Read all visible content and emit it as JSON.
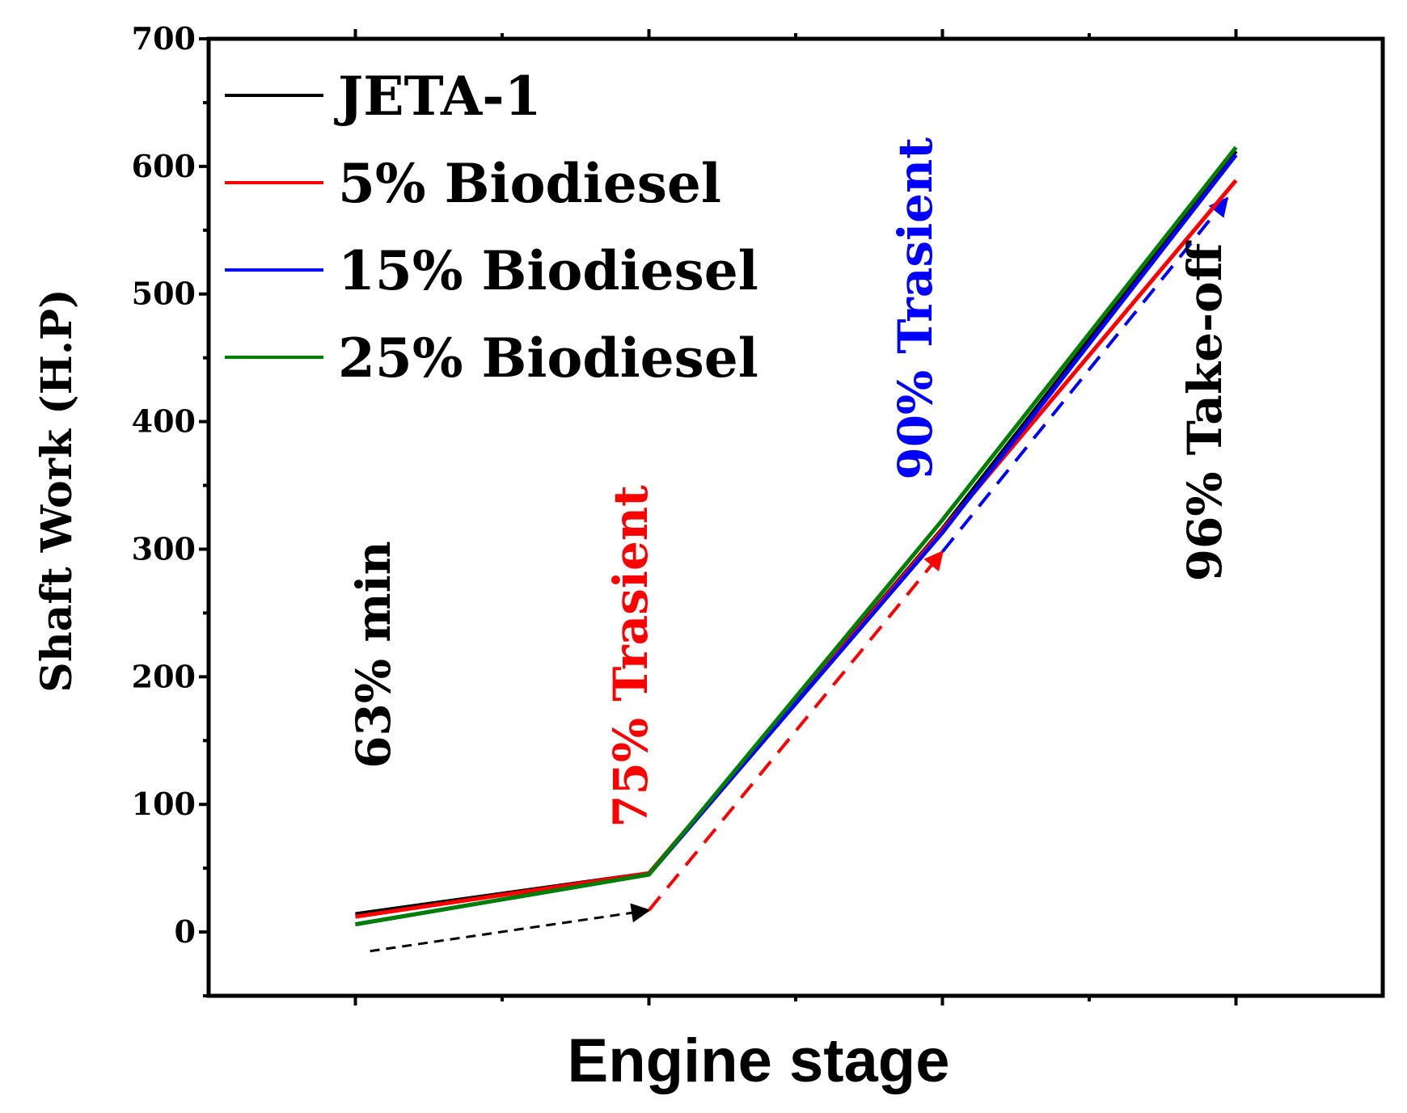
{
  "chart_data": {
    "type": "line",
    "title": "",
    "xlabel": "Engine stage",
    "ylabel": "Shaft Work (H.P)",
    "ylim": [
      -50,
      700
    ],
    "yticks": [
      0,
      100,
      200,
      300,
      400,
      500,
      600,
      700
    ],
    "tick_labels": [
      "0",
      "100",
      "200",
      "300",
      "400",
      "500",
      "600",
      "700"
    ],
    "x": [
      1,
      2,
      3,
      4
    ],
    "xlim": [
      0.5,
      4.5
    ],
    "grid": false,
    "legend_position": "top-left",
    "series": [
      {
        "name": "JETA-1",
        "color": "#000000",
        "values": [
          14,
          46,
          316,
          612
        ]
      },
      {
        "name": "5% Biodiesel",
        "color": "#ff0000",
        "values": [
          12,
          46,
          315,
          589
        ]
      },
      {
        "name": "15% Biodiesel",
        "color": "#0000ff",
        "values": [
          6,
          45,
          313,
          609
        ]
      },
      {
        "name": "25% Biodiesel",
        "color": "#008000",
        "values": [
          6,
          45,
          323,
          615
        ]
      }
    ],
    "annotations": [
      {
        "text": "63% min",
        "color": "#000000"
      },
      {
        "text": "75% Trasient",
        "color": "#ff0000"
      },
      {
        "text": "90% Trasient",
        "color": "#0000ff"
      },
      {
        "text": "96% Take-off",
        "color": "#000000"
      }
    ],
    "transition_arrows": [
      {
        "from_x": 1.05,
        "from_y": -15,
        "to_x": 2.0,
        "to_y": 17,
        "color": "#000000"
      },
      {
        "from_x": 2.0,
        "from_y": 17,
        "to_x": 3.0,
        "to_y": 298,
        "color": "#ff0000"
      },
      {
        "from_x": 3.0,
        "from_y": 298,
        "to_x": 3.97,
        "to_y": 575,
        "color": "#0000ff"
      }
    ]
  }
}
